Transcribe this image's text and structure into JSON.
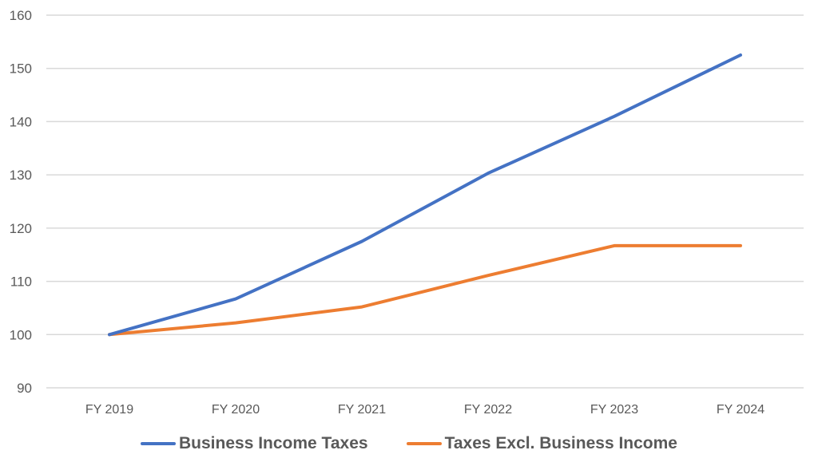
{
  "chart_data": {
    "type": "line",
    "title": "",
    "xlabel": "",
    "ylabel": "",
    "categories": [
      "FY 2019",
      "FY 2020",
      "FY 2021",
      "FY 2022",
      "FY 2023",
      "FY 2024"
    ],
    "series": [
      {
        "name": "Business Income Taxes",
        "color": "#4472C4",
        "values": [
          100,
          106.7,
          117.5,
          130.3,
          141.0,
          152.5
        ]
      },
      {
        "name": "Taxes Excl. Business Income",
        "color": "#ED7D31",
        "values": [
          100,
          102.2,
          105.2,
          111.1,
          116.7,
          116.7
        ]
      }
    ],
    "ylim": [
      90,
      160
    ],
    "yticks": [
      90,
      100,
      110,
      120,
      130,
      140,
      150,
      160
    ],
    "grid": true,
    "legend_position": "bottom"
  },
  "legend": {
    "items": [
      {
        "label": "Business Income Taxes",
        "color": "#4472C4"
      },
      {
        "label": "Taxes Excl. Business Income",
        "color": "#ED7D31"
      }
    ]
  }
}
